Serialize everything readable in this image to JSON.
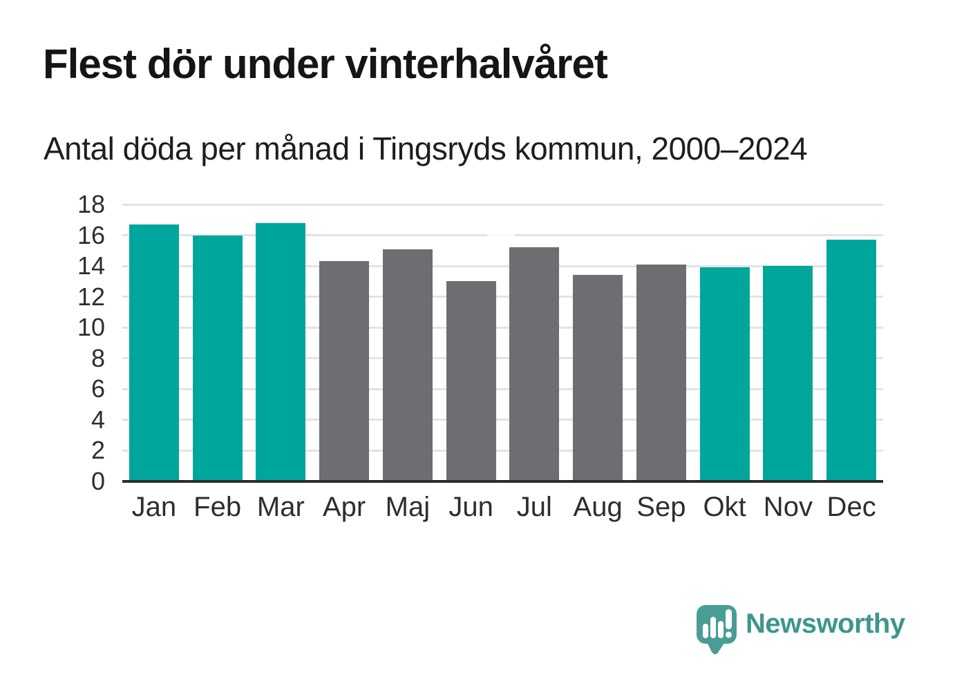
{
  "header": {
    "title": "Flest dör under vinterhalvåret",
    "subtitle": "Antal döda per månad i Tingsryds kommun, 2000–2024"
  },
  "chart_data": {
    "type": "bar",
    "title": "Flest dör under vinterhalvåret",
    "subtitle": "Antal döda per månad i Tingsryds kommun, 2000–2024",
    "categories": [
      "Jan",
      "Feb",
      "Mar",
      "Apr",
      "Maj",
      "Jun",
      "Jul",
      "Aug",
      "Sep",
      "Okt",
      "Nov",
      "Dec"
    ],
    "values": [
      16.7,
      16.0,
      16.8,
      14.3,
      15.1,
      13.0,
      15.2,
      13.4,
      14.1,
      13.9,
      14.0,
      15.7
    ],
    "color_groups": [
      "winter",
      "winter",
      "winter",
      "summer",
      "summer",
      "summer",
      "summer",
      "summer",
      "summer",
      "winter",
      "winter",
      "winter"
    ],
    "bar_colors": {
      "winter": "#00a69c",
      "summer": "#6d6d72"
    },
    "xlabel": "",
    "ylabel": "",
    "ylim": [
      0,
      18
    ],
    "yticks": [
      0,
      2,
      4,
      6,
      8,
      10,
      12,
      14,
      16,
      18
    ],
    "grid": true,
    "legend": false,
    "gridline_color": "#e3e3e5",
    "axis_color": "#2b2b2f"
  },
  "branding": {
    "logo_text": "Newsworthy",
    "logo_text_color": "#3e968f",
    "logo_icon_color": "#4a9c96",
    "logo_icon": "newsworthy-speech-bubble-barchart-icon"
  }
}
